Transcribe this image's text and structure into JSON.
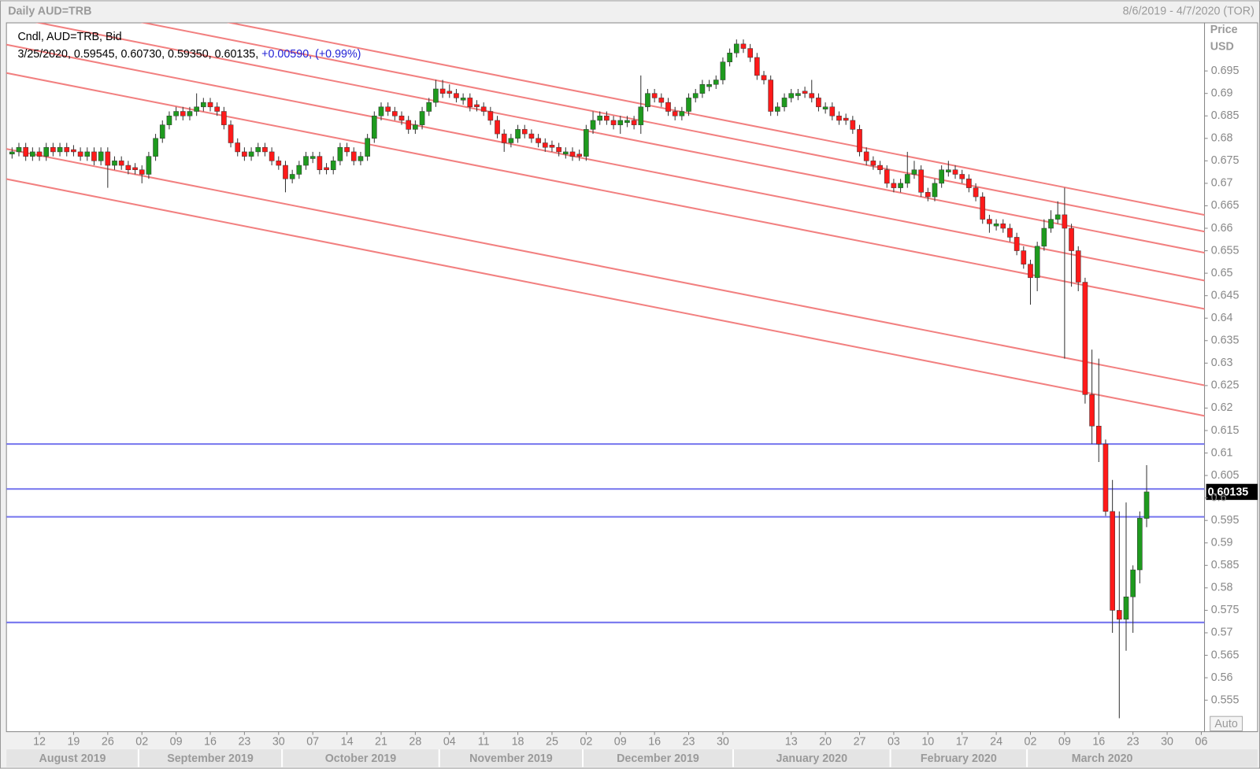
{
  "chart_data": {
    "type": "candlestick",
    "title": "Daily AUD=TRB",
    "date_range": "8/6/2019 - 4/7/2020 (TOR)",
    "legend_title": "Cndl, AUD=TRB, Bid",
    "legend_values": "3/25/2020, 0.59545, 0.60730, 0.59350, 0.60135,",
    "legend_change": "+0.00590, (+0.99%)",
    "y_axis_label": "Price",
    "y_axis_unit": "USD",
    "scale_button": "Auto",
    "up_color": "#1e9a1e",
    "down_color": "#ff1a1a",
    "x": [
      "2019-08-06",
      "2019-08-07",
      "2019-08-08",
      "2019-08-09",
      "2019-08-12",
      "2019-08-13",
      "2019-08-14",
      "2019-08-15",
      "2019-08-16",
      "2019-08-19",
      "2019-08-20",
      "2019-08-21",
      "2019-08-22",
      "2019-08-23",
      "2019-08-26",
      "2019-08-27",
      "2019-08-28",
      "2019-08-29",
      "2019-08-30",
      "2019-09-02",
      "2019-09-03",
      "2019-09-04",
      "2019-09-05",
      "2019-09-06",
      "2019-09-09",
      "2019-09-10",
      "2019-09-11",
      "2019-09-12",
      "2019-09-13",
      "2019-09-16",
      "2019-09-17",
      "2019-09-18",
      "2019-09-19",
      "2019-09-20",
      "2019-09-23",
      "2019-09-24",
      "2019-09-25",
      "2019-09-26",
      "2019-09-27",
      "2019-09-30",
      "2019-10-01",
      "2019-10-02",
      "2019-10-03",
      "2019-10-04",
      "2019-10-07",
      "2019-10-08",
      "2019-10-09",
      "2019-10-10",
      "2019-10-11",
      "2019-10-14",
      "2019-10-15",
      "2019-10-16",
      "2019-10-17",
      "2019-10-18",
      "2019-10-21",
      "2019-10-22",
      "2019-10-23",
      "2019-10-24",
      "2019-10-25",
      "2019-10-28",
      "2019-10-29",
      "2019-10-30",
      "2019-10-31",
      "2019-11-01",
      "2019-11-04",
      "2019-11-05",
      "2019-11-06",
      "2019-11-07",
      "2019-11-08",
      "2019-11-11",
      "2019-11-12",
      "2019-11-13",
      "2019-11-14",
      "2019-11-15",
      "2019-11-18",
      "2019-11-19",
      "2019-11-20",
      "2019-11-21",
      "2019-11-22",
      "2019-11-25",
      "2019-11-26",
      "2019-11-27",
      "2019-11-28",
      "2019-11-29",
      "2019-12-02",
      "2019-12-03",
      "2019-12-04",
      "2019-12-05",
      "2019-12-06",
      "2019-12-09",
      "2019-12-10",
      "2019-12-11",
      "2019-12-12",
      "2019-12-13",
      "2019-12-16",
      "2019-12-17",
      "2019-12-18",
      "2019-12-19",
      "2019-12-20",
      "2019-12-23",
      "2019-12-24",
      "2019-12-25",
      "2019-12-26",
      "2019-12-27",
      "2019-12-30",
      "2019-12-31",
      "2020-01-01",
      "2020-01-02",
      "2020-01-03",
      "2020-01-06",
      "2020-01-07",
      "2020-01-08",
      "2020-01-09",
      "2020-01-10",
      "2020-01-13",
      "2020-01-14",
      "2020-01-15",
      "2020-01-16",
      "2020-01-17",
      "2020-01-20",
      "2020-01-21",
      "2020-01-22",
      "2020-01-23",
      "2020-01-24",
      "2020-01-27",
      "2020-01-28",
      "2020-01-29",
      "2020-01-30",
      "2020-01-31",
      "2020-02-03",
      "2020-02-04",
      "2020-02-05",
      "2020-02-06",
      "2020-02-07",
      "2020-02-10",
      "2020-02-11",
      "2020-02-12",
      "2020-02-13",
      "2020-02-14",
      "2020-02-17",
      "2020-02-18",
      "2020-02-19",
      "2020-02-20",
      "2020-02-21",
      "2020-02-24",
      "2020-02-25",
      "2020-02-26",
      "2020-02-27",
      "2020-02-28",
      "2020-03-02",
      "2020-03-03",
      "2020-03-04",
      "2020-03-05",
      "2020-03-06",
      "2020-03-09",
      "2020-03-10",
      "2020-03-11",
      "2020-03-12",
      "2020-03-13",
      "2020-03-16",
      "2020-03-17",
      "2020-03-18",
      "2020-03-19",
      "2020-03-20",
      "2020-03-23",
      "2020-03-24",
      "2020-03-25"
    ],
    "open": [
      0.6765,
      0.677,
      0.678,
      0.676,
      0.677,
      0.676,
      0.678,
      0.677,
      0.678,
      0.6775,
      0.677,
      0.676,
      0.677,
      0.675,
      0.677,
      0.674,
      0.675,
      0.674,
      0.6735,
      0.673,
      0.672,
      0.676,
      0.68,
      0.683,
      0.685,
      0.686,
      0.685,
      0.686,
      0.687,
      0.688,
      0.687,
      0.686,
      0.683,
      0.679,
      0.677,
      0.676,
      0.677,
      0.678,
      0.677,
      0.675,
      0.674,
      0.671,
      0.672,
      0.674,
      0.6755,
      0.676,
      0.6735,
      0.673,
      0.675,
      0.678,
      0.677,
      0.675,
      0.676,
      0.68,
      0.685,
      0.687,
      0.686,
      0.685,
      0.684,
      0.682,
      0.683,
      0.686,
      0.688,
      0.691,
      0.6905,
      0.69,
      0.6885,
      0.689,
      0.6875,
      0.687,
      0.686,
      0.684,
      0.681,
      0.679,
      0.68,
      0.682,
      0.681,
      0.68,
      0.679,
      0.6785,
      0.678,
      0.6765,
      0.677,
      0.6765,
      0.676,
      0.682,
      0.684,
      0.685,
      0.684,
      0.683,
      0.6835,
      0.684,
      0.683,
      0.687,
      0.69,
      0.689,
      0.688,
      0.686,
      0.685,
      0.686,
      0.689,
      0.69,
      0.6915,
      0.692,
      0.693,
      0.697,
      0.699,
      0.701,
      0.7,
      0.698,
      0.694,
      0.693,
      0.686,
      0.687,
      0.689,
      0.6895,
      0.6905,
      0.69,
      0.689,
      0.6865,
      0.687,
      0.685,
      0.6845,
      0.684,
      0.682,
      0.677,
      0.675,
      0.674,
      0.673,
      0.67,
      0.669,
      0.67,
      0.672,
      0.673,
      0.668,
      0.667,
      0.67,
      0.6725,
      0.673,
      0.672,
      0.671,
      0.669,
      0.667,
      0.662,
      0.6605,
      0.661,
      0.66,
      0.658,
      0.655,
      0.652,
      0.649,
      0.656,
      0.66,
      0.662,
      0.663,
      0.66,
      0.655,
      0.648,
      0.623,
      0.616,
      0.612,
      0.597,
      0.575,
      0.573,
      0.578,
      0.584,
      0.59545
    ],
    "high": [
      0.678,
      0.679,
      0.679,
      0.678,
      0.678,
      0.679,
      0.679,
      0.679,
      0.679,
      0.6785,
      0.678,
      0.678,
      0.678,
      0.678,
      0.678,
      0.676,
      0.676,
      0.675,
      0.6745,
      0.674,
      0.677,
      0.681,
      0.684,
      0.686,
      0.687,
      0.687,
      0.687,
      0.69,
      0.689,
      0.689,
      0.688,
      0.687,
      0.684,
      0.68,
      0.678,
      0.678,
      0.679,
      0.679,
      0.678,
      0.676,
      0.675,
      0.673,
      0.675,
      0.677,
      0.677,
      0.677,
      0.6745,
      0.676,
      0.679,
      0.679,
      0.678,
      0.677,
      0.681,
      0.686,
      0.688,
      0.688,
      0.687,
      0.686,
      0.685,
      0.684,
      0.687,
      0.689,
      0.693,
      0.693,
      0.692,
      0.691,
      0.69,
      0.69,
      0.6885,
      0.688,
      0.687,
      0.685,
      0.682,
      0.681,
      0.683,
      0.683,
      0.682,
      0.681,
      0.68,
      0.6795,
      0.679,
      0.678,
      0.678,
      0.6775,
      0.683,
      0.686,
      0.686,
      0.686,
      0.685,
      0.685,
      0.685,
      0.685,
      0.694,
      0.691,
      0.691,
      0.69,
      0.689,
      0.687,
      0.687,
      0.69,
      0.691,
      0.693,
      0.693,
      0.694,
      0.698,
      0.7,
      0.702,
      0.702,
      0.701,
      0.699,
      0.695,
      0.694,
      0.688,
      0.69,
      0.691,
      0.691,
      0.6915,
      0.693,
      0.69,
      0.688,
      0.688,
      0.686,
      0.6855,
      0.685,
      0.683,
      0.678,
      0.676,
      0.675,
      0.674,
      0.671,
      0.671,
      0.677,
      0.675,
      0.674,
      0.669,
      0.671,
      0.674,
      0.675,
      0.674,
      0.673,
      0.672,
      0.67,
      0.668,
      0.663,
      0.662,
      0.662,
      0.661,
      0.659,
      0.656,
      0.653,
      0.657,
      0.662,
      0.664,
      0.666,
      0.669,
      0.661,
      0.656,
      0.649,
      0.633,
      0.631,
      0.613,
      0.604,
      0.597,
      0.599,
      0.585,
      0.597,
      0.6073
    ],
    "low": [
      0.6755,
      0.676,
      0.675,
      0.675,
      0.675,
      0.675,
      0.676,
      0.676,
      0.676,
      0.676,
      0.675,
      0.675,
      0.674,
      0.674,
      0.669,
      0.673,
      0.673,
      0.672,
      0.672,
      0.67,
      0.671,
      0.675,
      0.679,
      0.682,
      0.684,
      0.684,
      0.684,
      0.685,
      0.686,
      0.686,
      0.685,
      0.682,
      0.678,
      0.676,
      0.675,
      0.675,
      0.676,
      0.676,
      0.674,
      0.673,
      0.668,
      0.67,
      0.671,
      0.673,
      0.6745,
      0.672,
      0.672,
      0.672,
      0.674,
      0.676,
      0.674,
      0.674,
      0.675,
      0.679,
      0.684,
      0.685,
      0.684,
      0.683,
      0.681,
      0.681,
      0.682,
      0.685,
      0.687,
      0.689,
      0.689,
      0.688,
      0.6875,
      0.686,
      0.686,
      0.685,
      0.683,
      0.68,
      0.677,
      0.678,
      0.679,
      0.68,
      0.679,
      0.678,
      0.677,
      0.677,
      0.676,
      0.6755,
      0.675,
      0.675,
      0.675,
      0.681,
      0.683,
      0.683,
      0.682,
      0.681,
      0.6825,
      0.682,
      0.681,
      0.686,
      0.688,
      0.687,
      0.685,
      0.684,
      0.684,
      0.685,
      0.688,
      0.689,
      0.6905,
      0.691,
      0.692,
      0.696,
      0.698,
      0.699,
      0.697,
      0.693,
      0.692,
      0.685,
      0.685,
      0.686,
      0.688,
      0.6885,
      0.689,
      0.688,
      0.686,
      0.6855,
      0.684,
      0.683,
      0.683,
      0.681,
      0.676,
      0.674,
      0.673,
      0.672,
      0.669,
      0.668,
      0.668,
      0.669,
      0.671,
      0.667,
      0.666,
      0.666,
      0.669,
      0.6715,
      0.671,
      0.67,
      0.668,
      0.666,
      0.661,
      0.659,
      0.6595,
      0.659,
      0.657,
      0.654,
      0.651,
      0.643,
      0.646,
      0.655,
      0.659,
      0.661,
      0.631,
      0.647,
      0.646,
      0.621,
      0.612,
      0.608,
      0.596,
      0.57,
      0.551,
      0.566,
      0.57,
      0.581,
      0.5935
    ],
    "close": [
      0.677,
      0.678,
      0.676,
      0.677,
      0.676,
      0.678,
      0.677,
      0.678,
      0.677,
      0.677,
      0.676,
      0.677,
      0.675,
      0.677,
      0.674,
      0.675,
      0.674,
      0.673,
      0.673,
      0.672,
      0.676,
      0.68,
      0.683,
      0.685,
      0.686,
      0.685,
      0.686,
      0.687,
      0.688,
      0.687,
      0.686,
      0.683,
      0.679,
      0.677,
      0.676,
      0.677,
      0.678,
      0.677,
      0.675,
      0.674,
      0.671,
      0.672,
      0.674,
      0.676,
      0.676,
      0.673,
      0.673,
      0.675,
      0.678,
      0.677,
      0.675,
      0.676,
      0.68,
      0.685,
      0.687,
      0.686,
      0.685,
      0.684,
      0.682,
      0.683,
      0.686,
      0.688,
      0.691,
      0.69,
      0.69,
      0.689,
      0.689,
      0.687,
      0.687,
      0.686,
      0.684,
      0.681,
      0.679,
      0.68,
      0.682,
      0.681,
      0.68,
      0.679,
      0.678,
      0.678,
      0.677,
      0.677,
      0.676,
      0.676,
      0.682,
      0.684,
      0.685,
      0.684,
      0.683,
      0.684,
      0.684,
      0.683,
      0.687,
      0.69,
      0.689,
      0.688,
      0.686,
      0.685,
      0.686,
      0.689,
      0.69,
      0.692,
      0.692,
      0.693,
      0.697,
      0.699,
      0.701,
      0.7,
      0.698,
      0.694,
      0.693,
      0.686,
      0.687,
      0.689,
      0.69,
      0.69,
      0.69,
      0.689,
      0.687,
      0.687,
      0.685,
      0.684,
      0.684,
      0.682,
      0.677,
      0.675,
      0.674,
      0.673,
      0.67,
      0.669,
      0.67,
      0.672,
      0.673,
      0.668,
      0.667,
      0.67,
      0.673,
      0.673,
      0.672,
      0.671,
      0.669,
      0.667,
      0.662,
      0.661,
      0.661,
      0.66,
      0.658,
      0.655,
      0.652,
      0.649,
      0.656,
      0.66,
      0.662,
      0.663,
      0.66,
      0.655,
      0.648,
      0.623,
      0.616,
      0.612,
      0.597,
      0.575,
      0.573,
      0.578,
      0.584,
      0.5955,
      0.60135
    ],
    "ylim": [
      0.548,
      0.7057
    ],
    "yticks": [
      0.555,
      0.56,
      0.565,
      0.57,
      0.575,
      0.58,
      0.585,
      0.59,
      0.595,
      0.6,
      0.605,
      0.61,
      0.615,
      0.62,
      0.625,
      0.63,
      0.635,
      0.64,
      0.645,
      0.65,
      0.655,
      0.66,
      0.665,
      0.67,
      0.675,
      0.68,
      0.685,
      0.69,
      0.695
    ],
    "xticks": [
      {
        "value": "2019-08-12",
        "label": "12"
      },
      {
        "value": "2019-08-19",
        "label": "19"
      },
      {
        "value": "2019-08-26",
        "label": "26"
      },
      {
        "value": "2019-09-02",
        "label": "02"
      },
      {
        "value": "2019-09-09",
        "label": "09"
      },
      {
        "value": "2019-09-16",
        "label": "16"
      },
      {
        "value": "2019-09-23",
        "label": "23"
      },
      {
        "value": "2019-09-30",
        "label": "30"
      },
      {
        "value": "2019-10-07",
        "label": "07"
      },
      {
        "value": "2019-10-14",
        "label": "14"
      },
      {
        "value": "2019-10-21",
        "label": "21"
      },
      {
        "value": "2019-10-28",
        "label": "28"
      },
      {
        "value": "2019-11-04",
        "label": "04"
      },
      {
        "value": "2019-11-11",
        "label": "11"
      },
      {
        "value": "2019-11-18",
        "label": "18"
      },
      {
        "value": "2019-11-25",
        "label": "25"
      },
      {
        "value": "2019-12-02",
        "label": "02"
      },
      {
        "value": "2019-12-09",
        "label": "09"
      },
      {
        "value": "2019-12-16",
        "label": "16"
      },
      {
        "value": "2019-12-23",
        "label": "23"
      },
      {
        "value": "2019-12-30",
        "label": "30"
      },
      {
        "value": "2020-01-13",
        "label": "13"
      },
      {
        "value": "2020-01-20",
        "label": "20"
      },
      {
        "value": "2020-01-27",
        "label": "27"
      },
      {
        "value": "2020-02-03",
        "label": "03"
      },
      {
        "value": "2020-02-10",
        "label": "10"
      },
      {
        "value": "2020-02-17",
        "label": "17"
      },
      {
        "value": "2020-02-24",
        "label": "24"
      },
      {
        "value": "2020-03-02",
        "label": "02"
      },
      {
        "value": "2020-03-09",
        "label": "09"
      },
      {
        "value": "2020-03-16",
        "label": "16"
      },
      {
        "value": "2020-03-23",
        "label": "23"
      },
      {
        "value": "2020-03-30",
        "label": "30"
      },
      {
        "value": "2020-04-06",
        "label": "06"
      }
    ],
    "month_labels": [
      {
        "value": "2019-08-01",
        "label": "August 2019"
      },
      {
        "value": "2019-09-01",
        "label": "September 2019"
      },
      {
        "value": "2019-10-01",
        "label": "October 2019"
      },
      {
        "value": "2019-11-01",
        "label": "November 2019"
      },
      {
        "value": "2019-12-01",
        "label": "December 2019"
      },
      {
        "value": "2020-01-01",
        "label": "January 2020"
      },
      {
        "value": "2020-02-01",
        "label": "February 2020"
      },
      {
        "value": "2020-03-01",
        "label": "March 2020"
      }
    ],
    "trend_lines": {
      "color": "#f28080",
      "lines": [
        {
          "x": [
            "2019-08-05",
            "2020-04-07"
          ],
          "y": [
            0.7156,
            0.6628
          ]
        },
        {
          "x": [
            "2019-08-05",
            "2020-04-07"
          ],
          "y": [
            0.7118,
            0.6591
          ]
        },
        {
          "x": [
            "2019-08-05",
            "2020-04-07"
          ],
          "y": [
            0.7072,
            0.6544
          ]
        },
        {
          "x": [
            "2019-08-05",
            "2020-04-07"
          ],
          "y": [
            0.7009,
            0.6482
          ]
        },
        {
          "x": [
            "2019-08-05",
            "2020-04-07"
          ],
          "y": [
            0.6946,
            0.6419
          ]
        },
        {
          "x": [
            "2019-08-05",
            "2020-04-07"
          ],
          "y": [
            0.6777,
            0.6249
          ]
        },
        {
          "x": [
            "2019-08-05",
            "2020-04-07"
          ],
          "y": [
            0.671,
            0.6181
          ]
        }
      ]
    },
    "levels": {
      "color": "#7474ee",
      "values": [
        0.612,
        0.602,
        0.5958,
        0.5723
      ]
    }
  }
}
